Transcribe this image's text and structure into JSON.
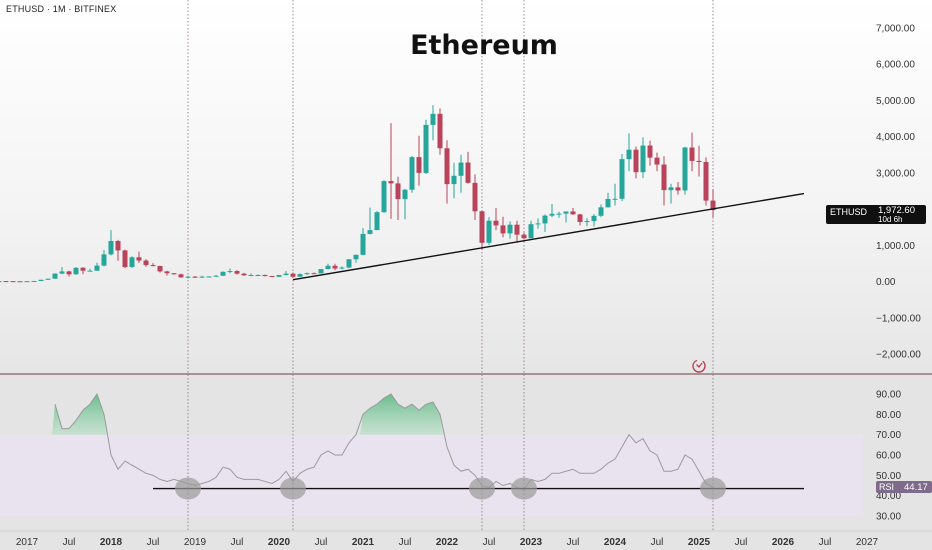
{
  "header": {
    "symbol_line": "ETHUSD · 1M · BITFINEX",
    "title": "Ethereum"
  },
  "price_box": {
    "symbol": "ETHUSD",
    "price": "1,972.60",
    "countdown": "10d 6h"
  },
  "rsi_box": {
    "name": "RSI",
    "value": "44.17"
  },
  "icons": {
    "replay": "refresh-sync-icon"
  },
  "colors": {
    "up": "#26a69a",
    "down": "#b8435a",
    "rsi_line": "#9a9a9a",
    "background": "#ffffff"
  },
  "chart_data": [
    {
      "type": "candlestick",
      "ticker": "ETHUSD",
      "interval": "1M",
      "exchange": "BITFINEX",
      "y_scale": "linear",
      "ylim": [
        -2500,
        7500
      ],
      "y_ticks": [
        "7,000.00",
        "6,000.00",
        "5,000.00",
        "4,000.00",
        "3,000.00",
        "2,000.00",
        "1,000.00",
        "0.00",
        "−1,000.00",
        "−2,000.00"
      ],
      "y_tick_values": [
        7000,
        6000,
        5000,
        4000,
        3000,
        2000,
        1000,
        0,
        -1000,
        -2000
      ],
      "x_tick_labels": [
        "2017",
        "Jul",
        "2018",
        "Jul",
        "2019",
        "Jul",
        "2020",
        "Jul",
        "2021",
        "Jul",
        "2022",
        "Jul",
        "2023",
        "Jul",
        "2024",
        "Jul",
        "2025",
        "Jul",
        "2026",
        "Jul",
        "2027"
      ],
      "x_tick_dates": [
        "2017-01",
        "2017-07",
        "2018-01",
        "2018-07",
        "2019-01",
        "2019-07",
        "2020-01",
        "2020-07",
        "2021-01",
        "2021-07",
        "2022-01",
        "2022-07",
        "2023-01",
        "2023-07",
        "2024-01",
        "2024-07",
        "2025-01",
        "2025-07",
        "2026-01",
        "2026-07",
        "2027-01"
      ],
      "bold_x_labels": [
        "2018",
        "2020",
        "2021",
        "2022",
        "2023",
        "2024",
        "2025",
        "2026"
      ],
      "candles": [
        [
          "2016-06",
          10,
          14,
          10,
          12
        ],
        [
          "2016-07",
          12,
          14,
          7,
          10
        ],
        [
          "2016-08",
          10,
          13,
          8,
          11
        ],
        [
          "2016-09",
          11,
          14,
          10,
          13
        ],
        [
          "2016-10",
          13,
          15,
          10,
          11
        ],
        [
          "2016-11",
          11,
          12,
          8,
          9
        ],
        [
          "2016-12",
          9,
          9,
          7,
          8
        ],
        [
          "2017-01",
          8,
          11,
          8,
          10
        ],
        [
          "2017-02",
          10,
          17,
          10,
          16
        ],
        [
          "2017-03",
          16,
          53,
          16,
          50
        ],
        [
          "2017-04",
          50,
          80,
          45,
          78
        ],
        [
          "2017-05",
          78,
          230,
          78,
          220
        ],
        [
          "2017-06",
          220,
          400,
          200,
          280
        ],
        [
          "2017-07",
          280,
          300,
          140,
          200
        ],
        [
          "2017-08",
          200,
          400,
          190,
          380
        ],
        [
          "2017-09",
          380,
          400,
          200,
          300
        ],
        [
          "2017-10",
          300,
          350,
          280,
          300
        ],
        [
          "2017-11",
          300,
          520,
          290,
          440
        ],
        [
          "2017-12",
          440,
          870,
          420,
          750
        ],
        [
          "2018-01",
          750,
          1420,
          720,
          1120
        ],
        [
          "2018-02",
          1120,
          1150,
          570,
          860
        ],
        [
          "2018-03",
          860,
          880,
          370,
          400
        ],
        [
          "2018-04",
          400,
          700,
          380,
          670
        ],
        [
          "2018-05",
          670,
          830,
          510,
          580
        ],
        [
          "2018-06",
          580,
          620,
          410,
          455
        ],
        [
          "2018-07",
          455,
          510,
          420,
          430
        ],
        [
          "2018-08",
          430,
          435,
          250,
          280
        ],
        [
          "2018-09",
          280,
          300,
          165,
          230
        ],
        [
          "2018-10",
          230,
          235,
          190,
          200
        ],
        [
          "2018-11",
          200,
          220,
          100,
          115
        ],
        [
          "2018-12",
          115,
          160,
          82,
          135
        ],
        [
          "2019-01",
          135,
          155,
          100,
          107
        ],
        [
          "2019-02",
          107,
          160,
          100,
          135
        ],
        [
          "2019-03",
          135,
          145,
          125,
          141
        ],
        [
          "2019-04",
          141,
          185,
          140,
          160
        ],
        [
          "2019-05",
          160,
          285,
          158,
          268
        ],
        [
          "2019-06",
          268,
          360,
          230,
          290
        ],
        [
          "2019-07",
          290,
          315,
          190,
          218
        ],
        [
          "2019-08",
          218,
          240,
          160,
          170
        ],
        [
          "2019-09",
          170,
          225,
          155,
          180
        ],
        [
          "2019-10",
          180,
          200,
          150,
          182
        ],
        [
          "2019-11",
          182,
          190,
          140,
          152
        ],
        [
          "2019-12",
          152,
          158,
          118,
          130
        ],
        [
          "2020-01",
          130,
          185,
          128,
          180
        ],
        [
          "2020-02",
          180,
          290,
          175,
          218
        ],
        [
          "2020-03",
          218,
          250,
          90,
          133
        ],
        [
          "2020-04",
          133,
          225,
          130,
          206
        ],
        [
          "2020-05",
          206,
          250,
          190,
          231
        ],
        [
          "2020-06",
          231,
          250,
          220,
          226
        ],
        [
          "2020-07",
          226,
          350,
          225,
          345
        ],
        [
          "2020-08",
          345,
          490,
          340,
          435
        ],
        [
          "2020-09",
          435,
          490,
          310,
          360
        ],
        [
          "2020-10",
          360,
          420,
          335,
          386
        ],
        [
          "2020-11",
          386,
          620,
          370,
          615
        ],
        [
          "2020-12",
          615,
          750,
          520,
          737
        ],
        [
          "2021-01",
          737,
          1475,
          720,
          1315
        ],
        [
          "2021-02",
          1315,
          2040,
          1300,
          1420
        ],
        [
          "2021-03",
          1420,
          1945,
          1420,
          1915
        ],
        [
          "2021-04",
          1915,
          2800,
          1900,
          2775
        ],
        [
          "2021-05",
          2775,
          4375,
          1730,
          2710
        ],
        [
          "2021-06",
          2710,
          2895,
          1700,
          2275
        ],
        [
          "2021-07",
          2275,
          2560,
          1720,
          2535
        ],
        [
          "2021-08",
          2535,
          3470,
          2450,
          3435
        ],
        [
          "2021-09",
          3435,
          4025,
          2650,
          3000
        ],
        [
          "2021-10",
          3000,
          4470,
          2970,
          4325
        ],
        [
          "2021-11",
          4325,
          4870,
          3900,
          4630
        ],
        [
          "2021-12",
          4630,
          4780,
          3500,
          3680
        ],
        [
          "2022-01",
          3680,
          3900,
          2150,
          2690
        ],
        [
          "2022-02",
          2690,
          3280,
          2300,
          2920
        ],
        [
          "2022-03",
          2920,
          3500,
          2450,
          3285
        ],
        [
          "2022-04",
          3285,
          3580,
          2700,
          2725
        ],
        [
          "2022-05",
          2725,
          2960,
          1700,
          1940
        ],
        [
          "2022-06",
          1940,
          1970,
          880,
          1070
        ],
        [
          "2022-07",
          1070,
          1780,
          1010,
          1680
        ],
        [
          "2022-08",
          1680,
          2030,
          1420,
          1550
        ],
        [
          "2022-09",
          1550,
          1790,
          1220,
          1330
        ],
        [
          "2022-10",
          1330,
          1660,
          1190,
          1570
        ],
        [
          "2022-11",
          1570,
          1680,
          1070,
          1295
        ],
        [
          "2022-12",
          1295,
          1350,
          1160,
          1195
        ],
        [
          "2023-01",
          1195,
          1680,
          1190,
          1585
        ],
        [
          "2023-02",
          1585,
          1745,
          1460,
          1605
        ],
        [
          "2023-03",
          1605,
          1850,
          1370,
          1820
        ],
        [
          "2023-04",
          1820,
          2140,
          1780,
          1870
        ],
        [
          "2023-05",
          1870,
          1930,
          1760,
          1875
        ],
        [
          "2023-06",
          1875,
          1930,
          1630,
          1935
        ],
        [
          "2023-07",
          1935,
          2030,
          1840,
          1855
        ],
        [
          "2023-08",
          1855,
          1870,
          1550,
          1645
        ],
        [
          "2023-09",
          1645,
          1750,
          1530,
          1670
        ],
        [
          "2023-10",
          1670,
          1860,
          1520,
          1815
        ],
        [
          "2023-11",
          1815,
          2130,
          1780,
          2050
        ],
        [
          "2023-12",
          2050,
          2450,
          2040,
          2280
        ],
        [
          "2024-01",
          2280,
          2700,
          2100,
          2285
        ],
        [
          "2024-02",
          2285,
          3520,
          2220,
          3380
        ],
        [
          "2024-03",
          3380,
          4090,
          3050,
          3640
        ],
        [
          "2024-04",
          3640,
          3730,
          2850,
          3020
        ],
        [
          "2024-05",
          3020,
          3980,
          2860,
          3755
        ],
        [
          "2024-06",
          3755,
          3890,
          3200,
          3420
        ],
        [
          "2024-07",
          3420,
          3560,
          3050,
          3230
        ],
        [
          "2024-08",
          3230,
          3460,
          2100,
          2525
        ],
        [
          "2024-09",
          2525,
          2700,
          2150,
          2600
        ],
        [
          "2024-10",
          2600,
          2750,
          2400,
          2515
        ],
        [
          "2024-11",
          2515,
          3720,
          2400,
          3700
        ],
        [
          "2024-12",
          3700,
          4110,
          3050,
          3330
        ],
        [
          "2025-01",
          3330,
          3750,
          2900,
          3300
        ],
        [
          "2025-02",
          3300,
          3430,
          2100,
          2235
        ],
        [
          "2025-03",
          2235,
          2550,
          1760,
          1972.6
        ]
      ],
      "trendline": {
        "from": [
          "2020-03",
          50
        ],
        "to": [
          "2026-04",
          2430
        ]
      },
      "vertical_lines": [
        "2018-12",
        "2020-03",
        "2022-06",
        "2022-12",
        "2025-03"
      ]
    },
    {
      "type": "line",
      "indicator": "RSI",
      "ylim": [
        25,
        97
      ],
      "y_ticks": [
        "90.00",
        "80.00",
        "70.00",
        "60.00",
        "50.00",
        "40.00",
        "30.00"
      ],
      "y_tick_values": [
        90,
        80,
        70,
        60,
        50,
        40,
        30
      ],
      "overbought": 70,
      "oversold": 30,
      "x": [
        "2017-05",
        "2017-06",
        "2017-07",
        "2017-08",
        "2017-09",
        "2017-10",
        "2017-11",
        "2017-12",
        "2018-01",
        "2018-02",
        "2018-03",
        "2018-04",
        "2018-05",
        "2018-06",
        "2018-07",
        "2018-08",
        "2018-09",
        "2018-10",
        "2018-11",
        "2018-12",
        "2019-01",
        "2019-02",
        "2019-03",
        "2019-04",
        "2019-05",
        "2019-06",
        "2019-07",
        "2019-08",
        "2019-09",
        "2019-10",
        "2019-11",
        "2019-12",
        "2020-01",
        "2020-02",
        "2020-03",
        "2020-04",
        "2020-05",
        "2020-06",
        "2020-07",
        "2020-08",
        "2020-09",
        "2020-10",
        "2020-11",
        "2020-12",
        "2021-01",
        "2021-02",
        "2021-03",
        "2021-04",
        "2021-05",
        "2021-06",
        "2021-07",
        "2021-08",
        "2021-09",
        "2021-10",
        "2021-11",
        "2021-12",
        "2022-01",
        "2022-02",
        "2022-03",
        "2022-04",
        "2022-05",
        "2022-06",
        "2022-07",
        "2022-08",
        "2022-09",
        "2022-10",
        "2022-11",
        "2022-12",
        "2023-01",
        "2023-02",
        "2023-03",
        "2023-04",
        "2023-05",
        "2023-06",
        "2023-07",
        "2023-08",
        "2023-09",
        "2023-10",
        "2023-11",
        "2023-12",
        "2024-01",
        "2024-02",
        "2024-03",
        "2024-04",
        "2024-05",
        "2024-06",
        "2024-07",
        "2024-08",
        "2024-09",
        "2024-10",
        "2024-11",
        "2024-12",
        "2025-01",
        "2025-02",
        "2025-03"
      ],
      "values": [
        85,
        73,
        73,
        77,
        82,
        85,
        90,
        80,
        60,
        53,
        57,
        55,
        53,
        51,
        50,
        48,
        47,
        48,
        47,
        46,
        45,
        46,
        47,
        49,
        54,
        53,
        49,
        48,
        48,
        48,
        47,
        46,
        48,
        52,
        47,
        51,
        53,
        54,
        60,
        62,
        60,
        60,
        66,
        70,
        80,
        83,
        85,
        88,
        90,
        85,
        83,
        85,
        82,
        85,
        86,
        80,
        64,
        55,
        52,
        53,
        50,
        45,
        44,
        47,
        45,
        46,
        44,
        43,
        48,
        47,
        48,
        51,
        51,
        52,
        53,
        51,
        51,
        51,
        53,
        56,
        58,
        64,
        70,
        66,
        68,
        62,
        60,
        52,
        52,
        53,
        60,
        58,
        52,
        46,
        44
      ]
    }
  ]
}
